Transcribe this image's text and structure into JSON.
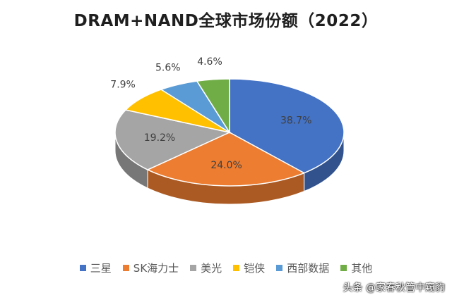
{
  "chart_data": {
    "type": "pie",
    "title": "DRAM+NAND全球市场份额（2022）",
    "categories": [
      "三星",
      "SK海力士",
      "美光",
      "铠侠",
      "西部数据",
      "其他"
    ],
    "values": [
      38.7,
      24.0,
      19.2,
      7.9,
      5.6,
      4.6
    ],
    "value_labels": [
      "38.7%",
      "24.0%",
      "19.2%",
      "7.9%",
      "5.6%",
      "4.6%"
    ],
    "colors": [
      "#4472C4",
      "#ED7D31",
      "#A5A5A5",
      "#FFC000",
      "#5B9BD5",
      "#70AD47"
    ],
    "style": "3d",
    "legend": "bottom"
  },
  "watermark": "头条 @家春秋管中窥豹"
}
